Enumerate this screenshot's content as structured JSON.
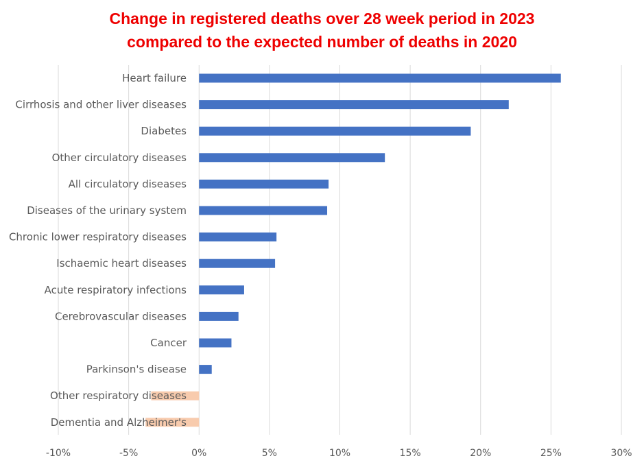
{
  "chart_data": {
    "type": "bar",
    "orientation": "horizontal",
    "title_lines": [
      "Change in registered deaths over 28 week period in 2023",
      "compared to the expected number of deaths in 2020"
    ],
    "categories": [
      "Heart failure",
      "Cirrhosis and other liver diseases",
      "Diabetes",
      "Other circulatory diseases",
      "All circulatory diseases",
      "Diseases of the urinary system",
      "Chronic lower respiratory diseases",
      "Ischaemic heart diseases",
      "Acute respiratory infections",
      "Cerebrovascular diseases",
      "Cancer",
      "Parkinson's disease",
      "Other respiratory diseases",
      "Dementia and Alzheimer's"
    ],
    "values": [
      25.7,
      22.0,
      19.3,
      13.2,
      9.2,
      9.1,
      5.5,
      5.4,
      3.2,
      2.8,
      2.3,
      0.9,
      -3.4,
      -3.8
    ],
    "xlim": [
      -10,
      30
    ],
    "ticks": [
      -10,
      -5,
      0,
      5,
      10,
      15,
      20,
      25,
      30
    ],
    "tick_labels": [
      "-10%",
      "-5%",
      "0%",
      "5%",
      "10%",
      "15%",
      "20%",
      "25%",
      "30%"
    ],
    "positive_color": "#4472c4",
    "negative_color": "#f8cbad",
    "grid": true,
    "legend": "none"
  }
}
